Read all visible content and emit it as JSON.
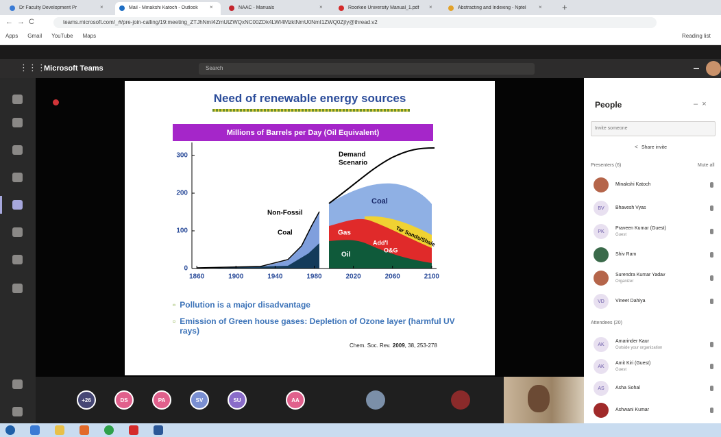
{
  "browser": {
    "tabs": [
      "Dr Faculty Development Pr",
      "Mail - Minakshi Katoch - Outlook",
      "NAAC - Manuals",
      "Roorkee University Manual_1.pdf",
      "Abstracting and Indexing - Nptel"
    ],
    "address": "teams.microsoft.com/_#/pre-join-calling/19:meeting_ZTJhNmI4ZmUtZWQxNC00ZDk4LWI4MzktNmU0NmI1ZWQ0ZjIy@thread.v2",
    "bookmarks": [
      "Apps",
      "Gmail",
      "YouTube",
      "Maps"
    ],
    "reading_list": "Reading list"
  },
  "teams": {
    "app_name": "Microsoft Teams",
    "search": "Search"
  },
  "slide": {
    "title": "Need of renewable energy sources",
    "chart": {
      "title": "Millions of Barrels per Day (Oil Equivalent)",
      "xlim": [
        1855,
        2105
      ],
      "xticks": [
        1860,
        1900,
        1940,
        1980,
        2020,
        2060,
        2100
      ],
      "ylim": [
        0,
        320
      ],
      "yticks": [
        0,
        100,
        200,
        300
      ],
      "annotations": [
        "Demand",
        "Scenario",
        "Non-Fossil",
        "Coal",
        "Coal",
        "Gas",
        "Oil",
        "Add'l",
        "O&G",
        "Tar Sands/Shale"
      ]
    },
    "bullets": [
      "Pollution is a major disadvantage",
      "Emission of Green house gases: Depletion of Ozone layer (harmful UV rays)"
    ],
    "citation": [
      "Chem. Soc. Rev.",
      "2009",
      ", 38, 253-278"
    ]
  },
  "participants": [
    "+26",
    "DS",
    "PA",
    "SV",
    "SU",
    "AA"
  ],
  "people_panel": {
    "title": "People",
    "invite_placeholder": "Invite someone",
    "share_invite": "Share invite",
    "presenters_header": "Presenters (6)",
    "mute_all": "Mute all",
    "presenters": [
      {
        "name": "Minakshi Katoch"
      },
      {
        "name": "Bhavesh Vyas",
        "initials": "BV"
      },
      {
        "name": "Praveen Kumar (Guest)",
        "initials": "PK",
        "subtitle": "Guest"
      },
      {
        "name": "Shiv Ram"
      },
      {
        "name": "Surendra Kumar Yadav",
        "subtitle": "Organizer"
      },
      {
        "name": "Vineet Dahiya",
        "initials": "VD"
      }
    ],
    "attendees_header": "Attendees (20)",
    "attendees": [
      {
        "name": "Amarinder Kaur",
        "initials": "AK",
        "subtitle": "Outside your organization"
      },
      {
        "name": "Amit Kiri (Guest)",
        "initials": "AK",
        "subtitle": "Guest"
      },
      {
        "name": "Asha Sohal",
        "initials": "AS"
      },
      {
        "name": "Ashwani Kumar"
      }
    ]
  }
}
